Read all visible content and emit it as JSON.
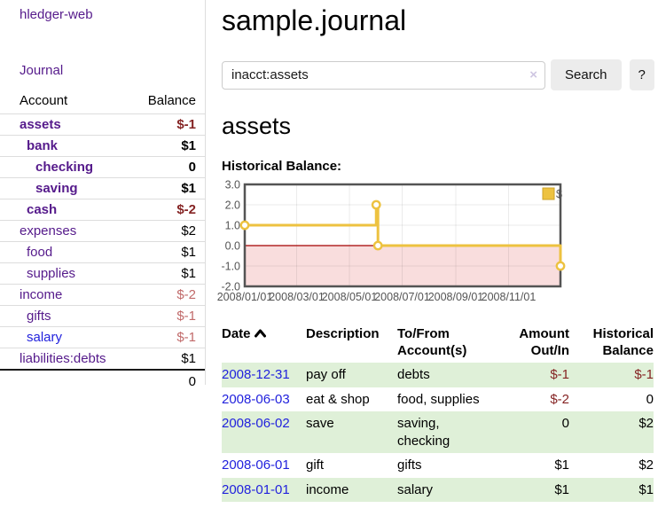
{
  "sidebar": {
    "app_title": "hledger-web",
    "nav": {
      "journal_label": "Journal"
    },
    "accounts_table": {
      "headers": {
        "account": "Account",
        "balance": "Balance"
      },
      "accounts": [
        {
          "name": "assets",
          "indent": 1,
          "bold": true,
          "link_style": "purple",
          "balance": "$-1",
          "balance_style": "neg"
        },
        {
          "name": "bank",
          "indent": 2,
          "bold": true,
          "link_style": "purple",
          "balance": "$1",
          "balance_style": "black"
        },
        {
          "name": "checking",
          "indent": 3,
          "bold": true,
          "link_style": "purple",
          "balance": "0",
          "balance_style": "black"
        },
        {
          "name": "saving",
          "indent": 3,
          "bold": true,
          "link_style": "purple",
          "balance": "$1",
          "balance_style": "black"
        },
        {
          "name": "cash",
          "indent": 2,
          "bold": true,
          "link_style": "purple",
          "balance": "$-2",
          "balance_style": "neg"
        },
        {
          "name": "expenses",
          "indent": 1,
          "bold": false,
          "link_style": "purple",
          "balance": "$2",
          "balance_style": "black"
        },
        {
          "name": "food",
          "indent": 2,
          "bold": false,
          "link_style": "purple",
          "balance": "$1",
          "balance_style": "black"
        },
        {
          "name": "supplies",
          "indent": 2,
          "bold": false,
          "link_style": "purple",
          "balance": "$1",
          "balance_style": "black"
        },
        {
          "name": "income",
          "indent": 1,
          "bold": false,
          "link_style": "purple",
          "balance": "$-2",
          "balance_style": "negmuted"
        },
        {
          "name": "gifts",
          "indent": 2,
          "bold": false,
          "link_style": "purple",
          "balance": "$-1",
          "balance_style": "negmuted"
        },
        {
          "name": "salary",
          "indent": 2,
          "bold": false,
          "link_style": "blue",
          "balance": "$-1",
          "balance_style": "negmuted"
        },
        {
          "name": "liabilities:debts",
          "indent": 1,
          "bold": false,
          "link_style": "purple",
          "balance": "$1",
          "balance_style": "black"
        }
      ],
      "total": "0"
    }
  },
  "main": {
    "title": "sample.journal",
    "search": {
      "query": "inacct:assets",
      "clear_icon": "×",
      "button_label": "Search",
      "help_label": "?"
    },
    "account_heading": "assets",
    "chart_heading": "Historical Balance:",
    "register_table": {
      "headers": {
        "date": "Date",
        "description": "Description",
        "accounts": "To/From Account(s)",
        "amount": "Amount Out/In",
        "balance": "Historical Balance"
      },
      "rows": [
        {
          "date": "2008-12-31",
          "description": "pay off",
          "accounts": "debts",
          "amount": "$-1",
          "amount_neg": true,
          "balance": "$-1",
          "balance_neg": true
        },
        {
          "date": "2008-06-03",
          "description": "eat & shop",
          "accounts": "food, supplies",
          "amount": "$-2",
          "amount_neg": true,
          "balance": "0",
          "balance_neg": false
        },
        {
          "date": "2008-06-02",
          "description": "save",
          "accounts": "saving, checking",
          "amount": "0",
          "amount_neg": false,
          "balance": "$2",
          "balance_neg": false
        },
        {
          "date": "2008-06-01",
          "description": "gift",
          "accounts": "gifts",
          "amount": "$1",
          "amount_neg": false,
          "balance": "$2",
          "balance_neg": false
        },
        {
          "date": "2008-01-01",
          "description": "income",
          "accounts": "salary",
          "amount": "$1",
          "amount_neg": false,
          "balance": "$1",
          "balance_neg": false
        }
      ]
    }
  },
  "colors": {
    "link_purple": "#551a8b",
    "link_blue": "#2222dd",
    "negative_strong": "#852424",
    "negative_muted": "#c16a6a",
    "row_highlight_green": "#dff0d8",
    "chart_line_gold": "#edc240",
    "chart_negative_region": "#f9dddd",
    "chart_zero_line": "#a40000",
    "chart_border": "#545454"
  },
  "chart_data": {
    "type": "line",
    "title": "Historical Balance:",
    "legend_position": "top-right",
    "grid": true,
    "ylim": [
      -2.0,
      3.0
    ],
    "y_ticks": [
      3.0,
      2.0,
      1.0,
      0.0,
      -1.0,
      -2.0
    ],
    "x_ticks": [
      {
        "label": "2008/01/01",
        "day": 0
      },
      {
        "label": "2008/03/01",
        "day": 60
      },
      {
        "label": "2008/05/01",
        "day": 121
      },
      {
        "label": "2008/07/01",
        "day": 182
      },
      {
        "label": "2008/09/01",
        "day": 244
      },
      {
        "label": "2008/11/01",
        "day": 305
      }
    ],
    "xlim_days": [
      0,
      365
    ],
    "series": [
      {
        "name": "$",
        "color": "#edc240",
        "steps": true,
        "points": [
          {
            "date": "2008/01/01",
            "day": 0,
            "value": 1.0
          },
          {
            "date": "2008/06/01",
            "day": 152,
            "value": 2.0
          },
          {
            "date": "2008/06/03",
            "day": 154,
            "value": 0.0
          },
          {
            "date": "2008/12/31",
            "day": 365,
            "value": -1.0
          }
        ]
      }
    ]
  }
}
